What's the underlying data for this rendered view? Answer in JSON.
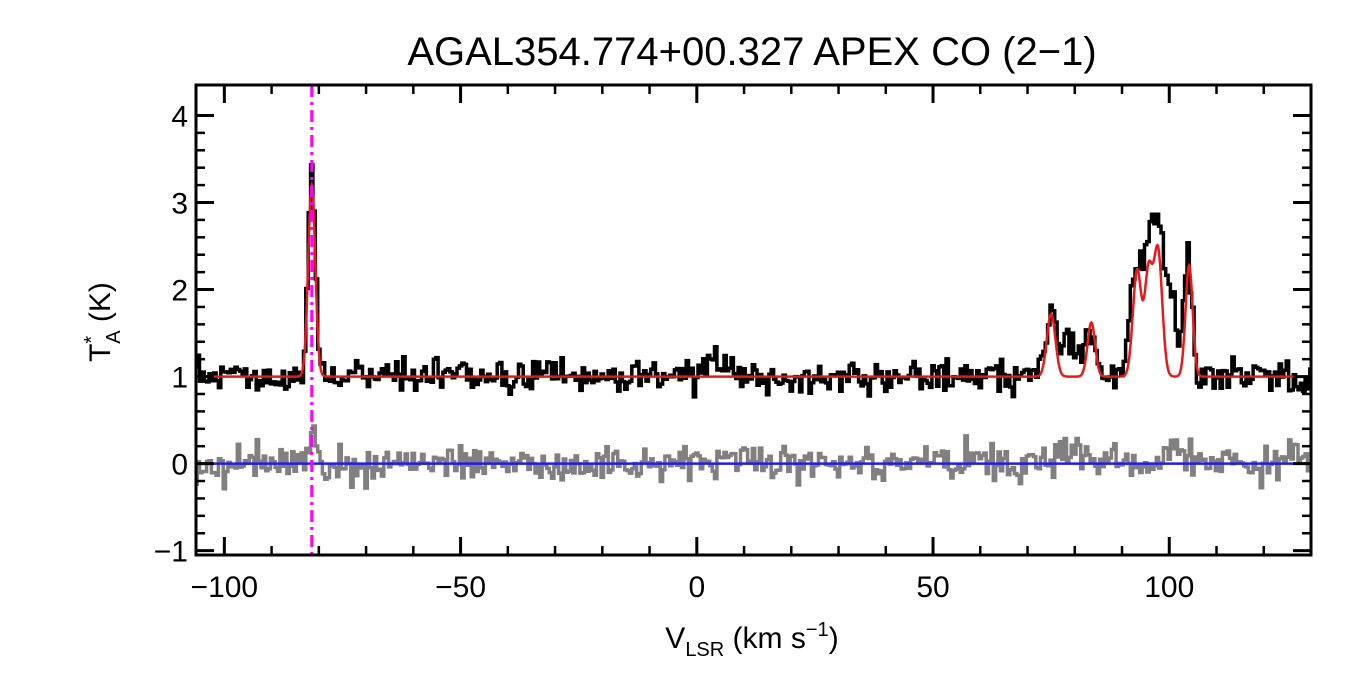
{
  "chart_data": {
    "type": "line",
    "title": "AGAL354.774+00.327  APEX CO (2−1)",
    "xlabel": {
      "main": "V",
      "sub": "LSR",
      "unit": " (km s",
      "sup": "−1",
      "close": ")"
    },
    "ylabel": {
      "main": "T",
      "sup": "*",
      "sub": "A",
      "unit": " (K)"
    },
    "xlim": [
      -106,
      130
    ],
    "ylim": [
      -1.05,
      4.35
    ],
    "xticks": [
      -100,
      -50,
      0,
      50,
      100
    ],
    "xtick_labels": [
      "−100",
      "−50",
      "0",
      "50",
      "100"
    ],
    "yticks": [
      -1,
      0,
      1,
      2,
      3,
      4
    ],
    "ytick_labels": [
      "−1",
      "0",
      "1",
      "2",
      "3",
      "4"
    ],
    "marker_velocity": -81.5,
    "series": [
      {
        "role": "observed spectrum",
        "color": "#000000",
        "style": "histogram",
        "baseline": 1.0,
        "noise_rms": 0.09,
        "features": [
          {
            "center": -81.5,
            "height": 2.3,
            "sigma": 0.8
          },
          {
            "center": 5.0,
            "height": 0.18,
            "sigma": 3.0
          },
          {
            "center": 75.0,
            "height": 0.65,
            "sigma": 0.9
          },
          {
            "center": 79.0,
            "height": 0.45,
            "sigma": 2.5
          },
          {
            "center": 83.5,
            "height": 0.55,
            "sigma": 0.9
          },
          {
            "center": 93.0,
            "height": 1.25,
            "sigma": 1.2
          },
          {
            "center": 95.5,
            "height": 1.2,
            "sigma": 1.0
          },
          {
            "center": 97.5,
            "height": 1.5,
            "sigma": 1.0
          },
          {
            "center": 100.0,
            "height": 1.0,
            "sigma": 1.5
          },
          {
            "center": 104.0,
            "height": 1.35,
            "sigma": 0.8
          }
        ]
      },
      {
        "role": "gaussian fit",
        "color": "#e41a1c",
        "style": "line",
        "baseline": 1.0,
        "components": [
          {
            "center": -81.5,
            "height": 2.2,
            "sigma": 0.75
          },
          {
            "center": 75.0,
            "height": 0.72,
            "sigma": 0.9
          },
          {
            "center": 83.5,
            "height": 0.62,
            "sigma": 0.8
          },
          {
            "center": 93.2,
            "height": 1.22,
            "sigma": 0.9
          },
          {
            "center": 95.6,
            "height": 1.15,
            "sigma": 0.8
          },
          {
            "center": 97.6,
            "height": 1.45,
            "sigma": 0.9
          },
          {
            "center": 104.2,
            "height": 1.28,
            "sigma": 0.75
          }
        ]
      },
      {
        "role": "residual",
        "color": "#808080",
        "style": "histogram",
        "baseline": 0.0,
        "noise_rms": 0.1,
        "features": [
          {
            "center": -81.5,
            "height": 0.35,
            "sigma": 0.6
          },
          {
            "center": 5.0,
            "height": 0.12,
            "sigma": 3.0
          },
          {
            "center": 79.0,
            "height": 0.2,
            "sigma": 2.5
          },
          {
            "center": 100.5,
            "height": 0.22,
            "sigma": 2.0
          }
        ]
      },
      {
        "role": "zero line",
        "color": "#1f1fdc",
        "style": "line",
        "value": 0.0
      }
    ],
    "marker_color": "#ff00ff",
    "grid": false,
    "legend": "none"
  }
}
